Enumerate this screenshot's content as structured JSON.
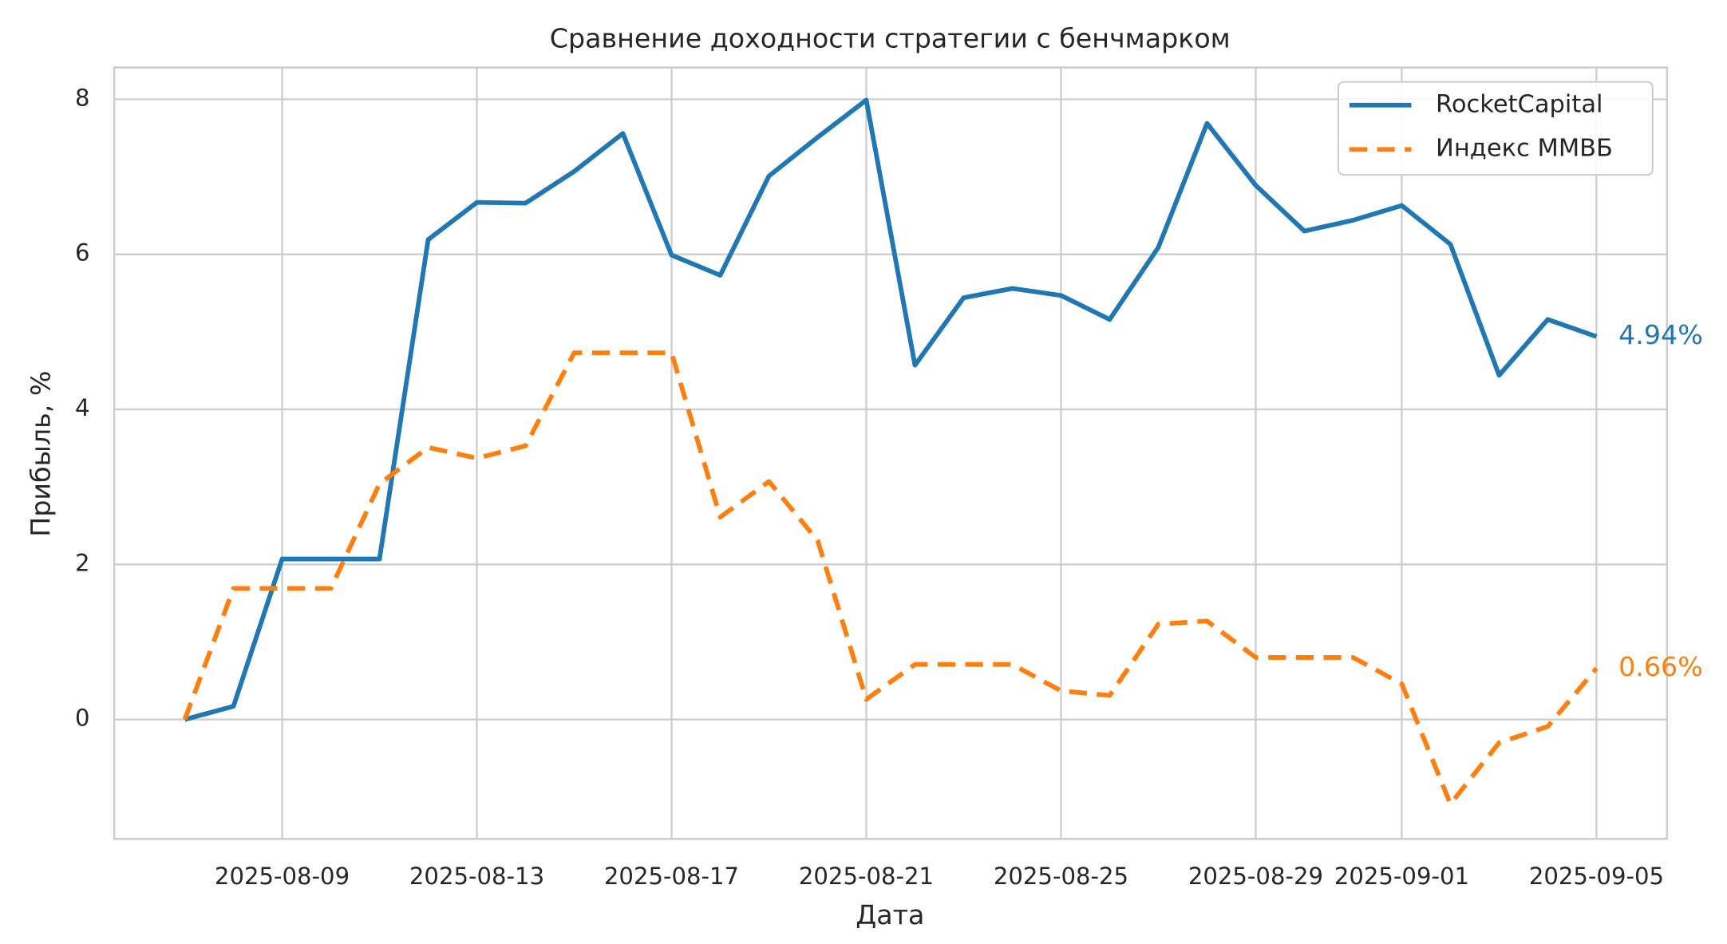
{
  "chart_data": {
    "type": "line",
    "title": "Сравнение доходности стратегии с бенчмарком",
    "xlabel": "Дата",
    "ylabel": "Прибыль, %",
    "x": [
      "2025-08-07",
      "2025-08-08",
      "2025-08-09",
      "2025-08-10",
      "2025-08-11",
      "2025-08-12",
      "2025-08-13",
      "2025-08-14",
      "2025-08-15",
      "2025-08-16",
      "2025-08-17",
      "2025-08-18",
      "2025-08-19",
      "2025-08-20",
      "2025-08-21",
      "2025-08-22",
      "2025-08-23",
      "2025-08-24",
      "2025-08-25",
      "2025-08-26",
      "2025-08-27",
      "2025-08-28",
      "2025-08-29",
      "2025-08-30",
      "2025-08-31",
      "2025-09-01",
      "2025-09-02",
      "2025-09-03",
      "2025-09-04",
      "2025-09-05"
    ],
    "series": [
      {
        "name": "RocketCapital",
        "color": "#1f77b4",
        "linestyle": "solid",
        "values": [
          0,
          0.17,
          2.07,
          2.07,
          2.07,
          6.19,
          6.67,
          6.66,
          7.07,
          7.56,
          5.99,
          5.73,
          7.01,
          7.51,
          7.99,
          4.57,
          5.44,
          5.56,
          5.47,
          5.16,
          6.09,
          7.69,
          6.89,
          6.3,
          6.44,
          6.63,
          6.13,
          4.44,
          5.16,
          4.94
        ],
        "value_labels": [
          null,
          null,
          null,
          null,
          null,
          null,
          null,
          null,
          null,
          null,
          null,
          null,
          null,
          null,
          null,
          null,
          null,
          null,
          null,
          null,
          null,
          null,
          null,
          null,
          null,
          null,
          null,
          null,
          null,
          "4.94%"
        ]
      },
      {
        "name": "Индекс ММВБ",
        "color": "#ff7f0e",
        "linestyle": "dashed",
        "values": [
          0,
          1.69,
          1.69,
          1.69,
          3.04,
          3.51,
          3.37,
          3.53,
          4.73,
          4.73,
          4.73,
          2.61,
          3.07,
          2.31,
          0.26,
          0.71,
          0.71,
          0.71,
          0.37,
          0.31,
          1.23,
          1.27,
          0.8,
          0.8,
          0.8,
          0.46,
          -1.09,
          -0.3,
          -0.09,
          0.66
        ],
        "value_labels": [
          null,
          null,
          null,
          null,
          null,
          null,
          null,
          null,
          null,
          null,
          null,
          null,
          null,
          null,
          null,
          null,
          null,
          null,
          null,
          null,
          null,
          null,
          null,
          null,
          null,
          null,
          null,
          null,
          null,
          "0.66%"
        ]
      }
    ],
    "xticks": [
      "2025-08-09",
      "2025-08-13",
      "2025-08-17",
      "2025-08-21",
      "2025-08-25",
      "2025-08-29",
      "2025-09-01",
      "2025-09-05"
    ],
    "ylim": [
      -1.54,
      8.41
    ],
    "yticks": [
      0,
      2,
      4,
      6,
      8
    ],
    "grid": true,
    "legend": "upper right"
  }
}
